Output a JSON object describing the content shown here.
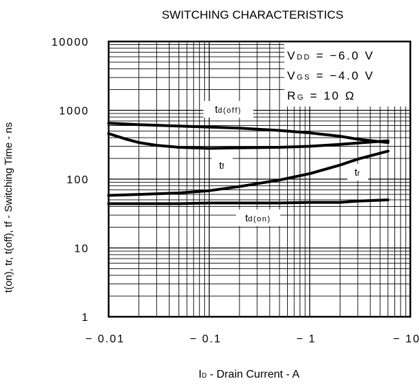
{
  "chart_data": {
    "type": "line",
    "title": "SWITCHING CHARACTERISTICS",
    "xlabel": {
      "main": "I",
      "sub": "D",
      "rest": " - Drain Current - A"
    },
    "ylabel": "t(on), tr, t(off), tf - Switching Time - ns",
    "x_scale": "log",
    "y_scale": "log",
    "xlim": [
      -0.01,
      -10
    ],
    "ylim": [
      1,
      10000
    ],
    "x_ticks": [
      "− 0.01",
      "− 0.1",
      "− 1",
      "− 10"
    ],
    "y_ticks": [
      "10000",
      "1000",
      "100",
      "10",
      "1"
    ],
    "grid": true,
    "legend": "none",
    "conditions": [
      {
        "main": "V",
        "sub": "DD",
        "rest": " = −6.0 V"
      },
      {
        "main": "V",
        "sub": "GS",
        "rest": " = −4.0 V"
      },
      {
        "main": "R",
        "sub": "G",
        "rest": " = 10 Ω"
      }
    ],
    "series": [
      {
        "name": "td(off)",
        "label_main": "t",
        "label_sub": "d(off)",
        "x": [
          -0.01,
          -0.02,
          -0.05,
          -0.1,
          -0.2,
          -0.5,
          -1,
          -2,
          -3,
          -6
        ],
        "y": [
          650,
          620,
          590,
          570,
          550,
          510,
          470,
          420,
          380,
          340
        ]
      },
      {
        "name": "tf",
        "label_main": "t",
        "label_sub": "f",
        "x": [
          -0.01,
          -0.015,
          -0.02,
          -0.03,
          -0.05,
          -0.1,
          -0.2,
          -0.5,
          -1,
          -2,
          -3,
          -6
        ],
        "y": [
          460,
          380,
          340,
          310,
          290,
          280,
          285,
          290,
          300,
          320,
          335,
          360
        ]
      },
      {
        "name": "tr",
        "label_main": "t",
        "label_sub": "r",
        "x": [
          -0.01,
          -0.02,
          -0.05,
          -0.1,
          -0.2,
          -0.5,
          -1,
          -2,
          -3,
          -6
        ],
        "y": [
          58,
          60,
          63,
          68,
          78,
          97,
          120,
          160,
          195,
          255
        ]
      },
      {
        "name": "td(on)",
        "label_main": "t",
        "label_sub": "d(on)",
        "x": [
          -0.01,
          -0.02,
          -0.05,
          -0.1,
          -0.2,
          -0.5,
          -1,
          -2,
          -3,
          -6
        ],
        "y": [
          44,
          44,
          44,
          45,
          45,
          45,
          46,
          46,
          48,
          50
        ]
      }
    ]
  }
}
